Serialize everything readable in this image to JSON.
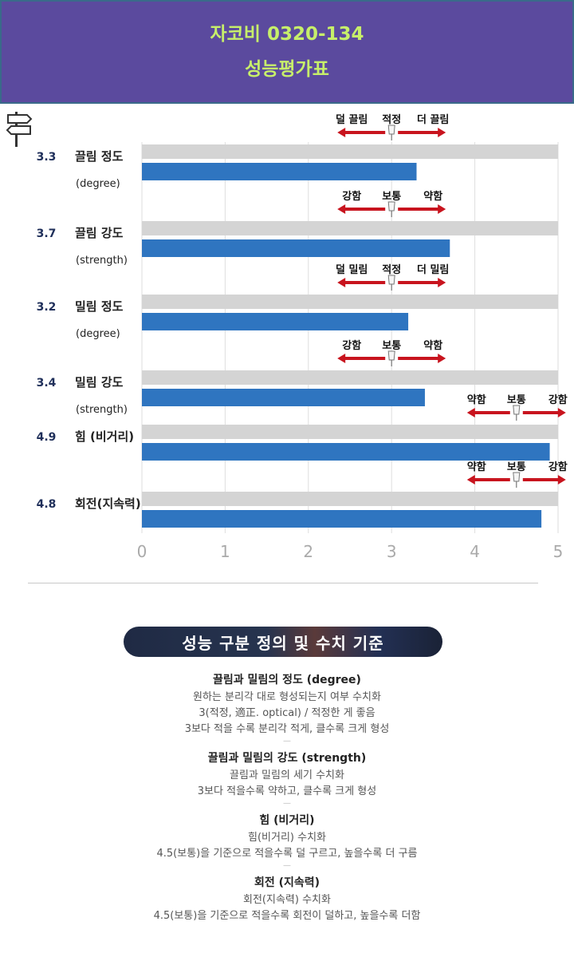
{
  "header": {
    "title": "자코비 0320-134",
    "subtitle": "성능평가표"
  },
  "chart_data": {
    "type": "bar",
    "orientation": "horizontal",
    "xlim": [
      0,
      5
    ],
    "xticks": [
      "0",
      "1",
      "2",
      "3",
      "4",
      "5"
    ],
    "grid": "vertical",
    "rows": [
      {
        "score": "3.3",
        "value": 3.3,
        "name": "끌림 정도",
        "sub": "(degree)",
        "scale": [
          "덜 끌림",
          "적정",
          "더 끌림"
        ],
        "scale_center": 3.0
      },
      {
        "score": "3.7",
        "value": 3.7,
        "name": "끌림 강도",
        "sub": "(strength)",
        "scale": [
          "강함",
          "보통",
          "약함"
        ],
        "scale_center": 3.0
      },
      {
        "score": "3.2",
        "value": 3.2,
        "name": "밀림 정도",
        "sub": "(degree)",
        "scale": [
          "덜 밀림",
          "적정",
          "더 밀림"
        ],
        "scale_center": 3.0
      },
      {
        "score": "3.4",
        "value": 3.4,
        "name": "밀림 강도",
        "sub": "(strength)",
        "scale": [
          "강함",
          "보통",
          "약함"
        ],
        "scale_center": 3.0
      },
      {
        "score": "4.9",
        "value": 4.9,
        "name": "힘 (비거리)",
        "sub": "",
        "scale": [
          "약함",
          "보통",
          "강함"
        ],
        "scale_center": 4.5
      },
      {
        "score": "4.8",
        "value": 4.8,
        "name": "회전(지속력)",
        "sub": "",
        "scale": [
          "약함",
          "보통",
          "강함"
        ],
        "scale_center": 4.5
      }
    ],
    "colors": {
      "bar": "#2f75c0",
      "track": "#d4d4d4",
      "arrow": "#c8141e",
      "score": "#1f2f5a"
    }
  },
  "section": {
    "badge": "성능 구분 정의 및 수치 기준",
    "definitions": [
      {
        "title": "끌림과 밀림의 정도 (degree)",
        "lines": [
          "원하는 분리각 대로 형성되는지 여부 수치화",
          "3(적정, 適正. optical) / 적정한 게 좋음",
          "3보다 적을 수록 분리각 적게, 클수록 크게 형성"
        ]
      },
      {
        "title": "끌림과 밀림의 강도 (strength)",
        "lines": [
          "끌림과 밀림의 세기 수치화",
          "3보다 적을수록 약하고, 클수록 크게 형성"
        ]
      },
      {
        "title": "힘 (비거리)",
        "lines": [
          "힘(비거리) 수치화",
          "4.5(보통)을 기준으로 적을수록 덜 구르고, 높을수록 더 구름"
        ]
      },
      {
        "title": "회전 (지속력)",
        "lines": [
          "회전(지속력) 수치화",
          "4.5(보통)을 기준으로 적을수록 회전이 덜하고, 높을수록 더함"
        ]
      }
    ]
  }
}
